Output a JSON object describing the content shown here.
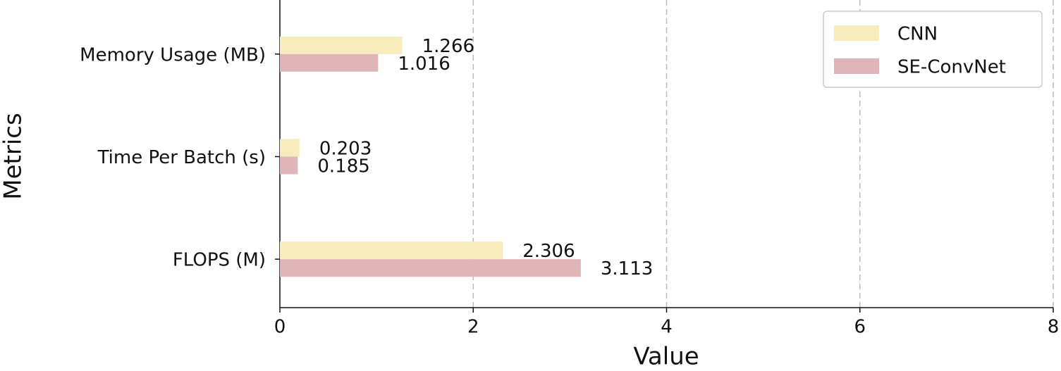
{
  "chart_data": {
    "type": "barh",
    "xlabel": "Value",
    "ylabel": "Metrics",
    "categories": [
      "Memory Usage (MB)",
      "Time Per Batch (s)",
      "FLOPS (M)"
    ],
    "series": [
      {
        "name": "CNN",
        "color": "#f6ecbd",
        "values": [
          1.266,
          0.203,
          2.306
        ]
      },
      {
        "name": "SE-ConvNet",
        "color": "#dfb5b7",
        "values": [
          1.016,
          0.185,
          3.113
        ]
      }
    ],
    "xlim": [
      0,
      8
    ],
    "xticks": [
      0,
      2,
      4,
      6,
      8
    ],
    "grid": true,
    "legend": "upper right"
  }
}
